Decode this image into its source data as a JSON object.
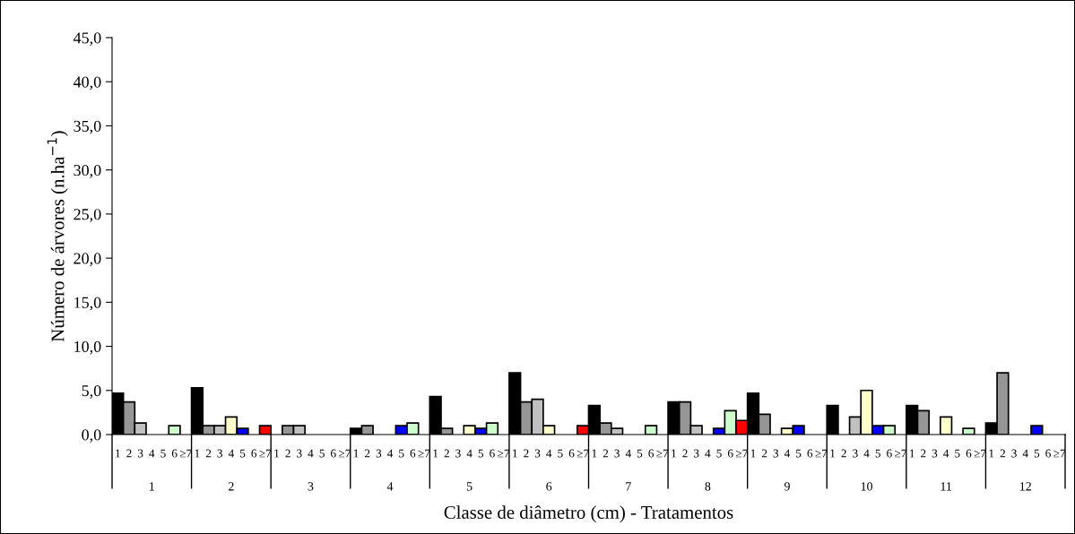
{
  "chart_data": {
    "type": "bar",
    "xlabel": "Classe de diâmetro (cm) - Tratamentos",
    "ylabel": "Número de árvores (n.ha$^{−1}$)",
    "categories": [
      "1",
      "2",
      "3",
      "4",
      "5",
      "6",
      "7",
      "8",
      "9",
      "10",
      "11",
      "12"
    ],
    "series": [
      {
        "name": "1",
        "color": "#000000",
        "values": [
          4.7,
          5.3,
          null,
          0.7,
          4.3,
          7.0,
          3.3,
          3.7,
          4.7,
          3.3,
          3.3,
          1.3
        ]
      },
      {
        "name": "2",
        "color": "#969696",
        "values": [
          3.7,
          1.0,
          1.0,
          1.0,
          0.7,
          3.7,
          1.3,
          3.7,
          2.3,
          null,
          2.7,
          7.0
        ]
      },
      {
        "name": "3",
        "color": "#c0c0c0",
        "values": [
          1.3,
          1.0,
          1.0,
          null,
          null,
          4.0,
          0.7,
          1.0,
          null,
          2.0,
          null,
          null
        ]
      },
      {
        "name": "4",
        "color": "#ffffcc",
        "values": [
          null,
          2.0,
          null,
          null,
          1.0,
          1.0,
          null,
          null,
          0.7,
          5.0,
          2.0,
          null
        ]
      },
      {
        "name": "5",
        "color": "#0000ff",
        "values": [
          null,
          0.7,
          null,
          1.0,
          0.7,
          null,
          null,
          0.7,
          1.0,
          1.0,
          null,
          1.0
        ]
      },
      {
        "name": "6",
        "color": "#ccffcc",
        "values": [
          1.0,
          null,
          null,
          1.3,
          1.3,
          null,
          1.0,
          2.7,
          null,
          1.0,
          0.7,
          null
        ]
      },
      {
        "name": "≥7",
        "color": "#ff0000",
        "values": [
          null,
          1.0,
          null,
          null,
          null,
          1.0,
          null,
          1.6,
          null,
          null,
          null,
          null
        ]
      }
    ],
    "ylim": [
      0,
      45
    ],
    "yticks": [
      {
        "value": 0,
        "label": "0,0"
      },
      {
        "value": 5,
        "label": "5,0"
      },
      {
        "value": 10,
        "label": "10,0"
      },
      {
        "value": 15,
        "label": "15,0"
      },
      {
        "value": 20,
        "label": "20,0"
      },
      {
        "value": 25,
        "label": "25,0"
      },
      {
        "value": 30,
        "label": "30,0"
      },
      {
        "value": 35,
        "label": "35,0"
      },
      {
        "value": 40,
        "label": "40,0"
      },
      {
        "value": 45,
        "label": "45,0"
      }
    ],
    "grid": false,
    "legend": false
  }
}
